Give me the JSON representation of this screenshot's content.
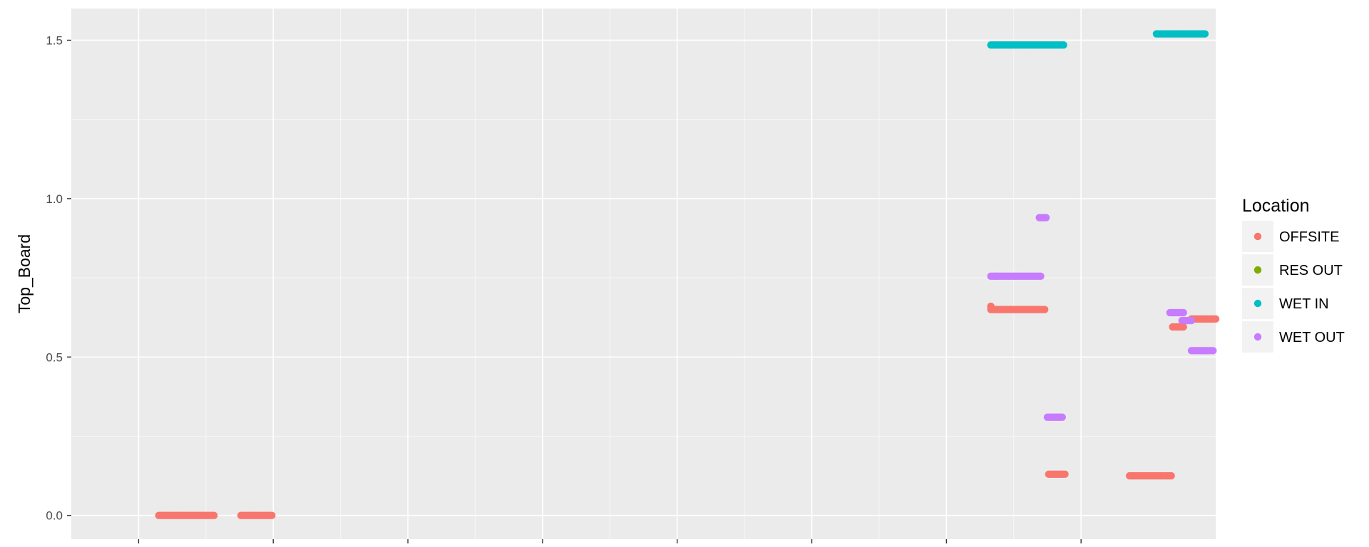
{
  "chart_data": {
    "type": "scatter",
    "title": "",
    "xlabel": "",
    "ylabel": "Top_Board",
    "ylim": [
      -0.075,
      1.6
    ],
    "xlim": [
      0.5,
      9.0
    ],
    "yticks": [
      0.0,
      0.5,
      1.0,
      1.5
    ],
    "ytick_labels": [
      "0.0",
      "0.5",
      "1.0",
      "1.5"
    ],
    "xticks": [
      1,
      2,
      3,
      4,
      5,
      6,
      7,
      8
    ],
    "xtick_labels": [],
    "grid": true,
    "background": "#ebebeb",
    "legend": {
      "title": "Location",
      "position": "right",
      "entries": [
        {
          "label": "OFFSITE",
          "color": "#f8766d"
        },
        {
          "label": "RES OUT",
          "color": "#7cae00"
        },
        {
          "label": "WET IN",
          "color": "#00bfc4"
        },
        {
          "label": "WET OUT",
          "color": "#c77cff"
        }
      ]
    },
    "series": [
      {
        "name": "OFFSITE",
        "color": "#f8766d",
        "segments": [
          {
            "x": [
              1.15,
              1.56
            ],
            "y": 0.0
          },
          {
            "x": [
              1.76,
              1.99
            ],
            "y": 0.0
          },
          {
            "x": [
              7.33,
              7.73
            ],
            "y": 0.65
          },
          {
            "x": [
              7.33,
              7.33
            ],
            "y": 0.66
          },
          {
            "x": [
              7.76,
              7.88
            ],
            "y": 0.13
          },
          {
            "x": [
              8.36,
              8.67
            ],
            "y": 0.125
          },
          {
            "x": [
              8.68,
              8.76
            ],
            "y": 0.595
          },
          {
            "x": [
              8.82,
              9.0
            ],
            "y": 0.62
          }
        ]
      },
      {
        "name": "RES OUT",
        "color": "#7cae00",
        "segments": []
      },
      {
        "name": "WET IN",
        "color": "#00bfc4",
        "segments": [
          {
            "x": [
              7.33,
              7.87
            ],
            "y": 1.485
          },
          {
            "x": [
              8.56,
              8.92
            ],
            "y": 1.52
          }
        ]
      },
      {
        "name": "WET OUT",
        "color": "#c77cff",
        "segments": [
          {
            "x": [
              7.69,
              7.74
            ],
            "y": 0.94
          },
          {
            "x": [
              7.33,
              7.7
            ],
            "y": 0.755
          },
          {
            "x": [
              7.75,
              7.86
            ],
            "y": 0.31
          },
          {
            "x": [
              8.66,
              8.76
            ],
            "y": 0.64
          },
          {
            "x": [
              8.75,
              8.82
            ],
            "y": 0.615
          },
          {
            "x": [
              8.82,
              8.98
            ],
            "y": 0.52
          }
        ]
      }
    ]
  }
}
